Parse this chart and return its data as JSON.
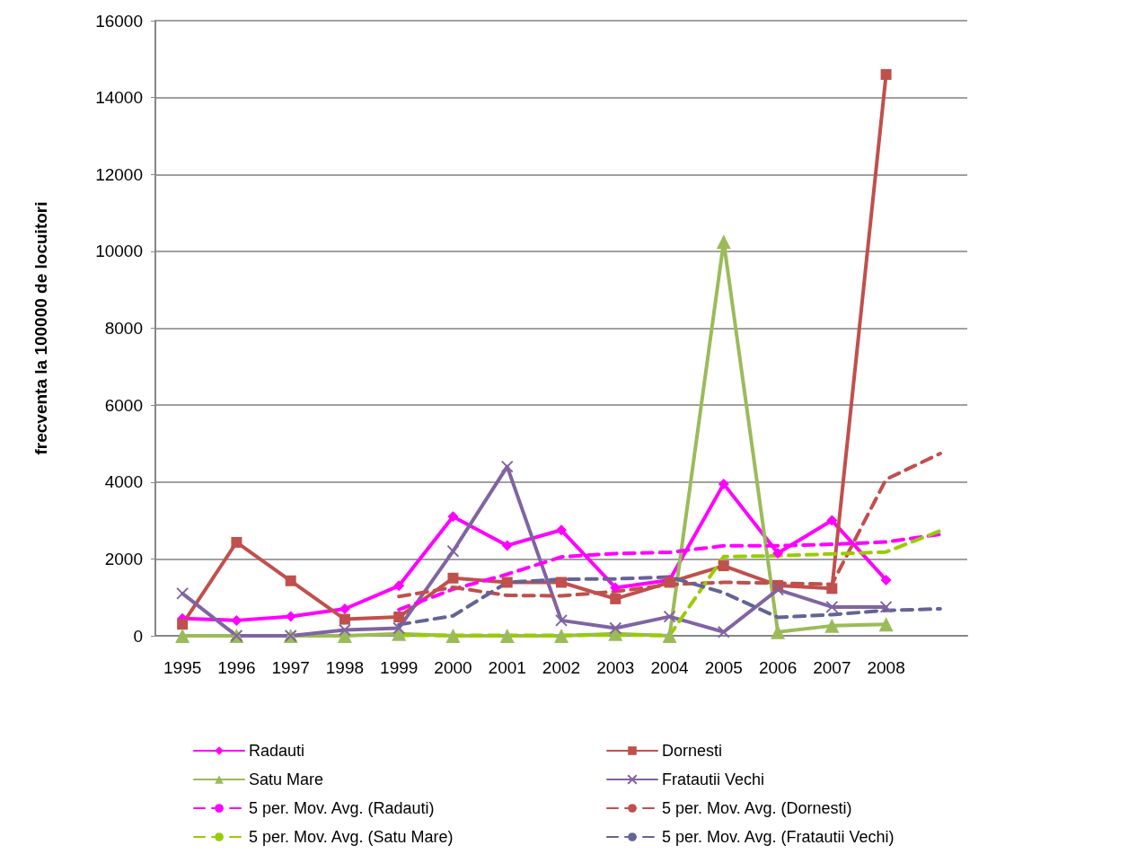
{
  "chart_data": {
    "type": "line",
    "ylabel": "frecventa la 100000 de locuitori",
    "categories": [
      "1995",
      "1996",
      "1997",
      "1998",
      "1999",
      "2000",
      "2001",
      "2002",
      "2003",
      "2004",
      "2005",
      "2006",
      "2007",
      "2008",
      null
    ],
    "ylim": [
      0,
      16000
    ],
    "yticks": [
      0,
      2000,
      4000,
      6000,
      8000,
      10000,
      12000,
      14000,
      16000
    ],
    "grid": "y",
    "legend": "bottom",
    "series": [
      {
        "name": "Radauti",
        "color": "#ff00ff",
        "marker": "diamond",
        "line_style": "solid",
        "values": [
          450,
          400,
          500,
          700,
          1300,
          3100,
          2350,
          2750,
          1250,
          1450,
          3950,
          2150,
          3000,
          1450,
          null
        ]
      },
      {
        "name": "Dornesti",
        "color": "#c0504d",
        "marker": "square",
        "line_style": "solid",
        "values": [
          300,
          2430,
          1430,
          430,
          490,
          1500,
          1390,
          1390,
          960,
          1390,
          1820,
          1310,
          1230,
          14600,
          null
        ]
      },
      {
        "name": "Satu Mare",
        "color": "#9bbb59",
        "marker": "triangle",
        "line_style": "solid",
        "values": [
          0,
          0,
          0,
          0,
          50,
          0,
          0,
          0,
          50,
          0,
          10250,
          100,
          260,
          300,
          null
        ]
      },
      {
        "name": "Fratautii Vechi",
        "color": "#8064a2",
        "marker": "cross",
        "line_style": "solid",
        "values": [
          1100,
          0,
          0,
          150,
          200,
          2200,
          4400,
          400,
          200,
          500,
          100,
          1200,
          750,
          750,
          null
        ]
      },
      {
        "name": "5 per. Mov. Avg. (Radauti)",
        "color": "#ff00ff",
        "marker": "none",
        "line_style": "dashed",
        "values": [
          null,
          null,
          null,
          null,
          680,
          1210,
          1600,
          2050,
          2140,
          2170,
          2340,
          2340,
          2380,
          2440,
          2640
        ]
      },
      {
        "name": "5 per. Mov. Avg. (Dornesti)",
        "color": "#c0504d",
        "marker": "none",
        "line_style": "dashed",
        "values": [
          null,
          null,
          null,
          null,
          1020,
          1260,
          1050,
          1040,
          1150,
          1330,
          1390,
          1370,
          1340,
          4070,
          4740
        ]
      },
      {
        "name": "5 per. Mov. Avg. (Satu Mare)",
        "color": "#99cc00",
        "marker": "none",
        "line_style": "dashed",
        "values": [
          null,
          null,
          null,
          null,
          10,
          10,
          10,
          10,
          20,
          10,
          2060,
          2080,
          2130,
          2180,
          2730
        ]
      },
      {
        "name": "5 per. Mov. Avg. (Fratautii Vechi)",
        "color": "#646496",
        "marker": "none",
        "line_style": "dashed",
        "values": [
          null,
          null,
          null,
          null,
          290,
          520,
          1390,
          1470,
          1480,
          1530,
          1120,
          480,
          550,
          660,
          700
        ]
      }
    ]
  }
}
